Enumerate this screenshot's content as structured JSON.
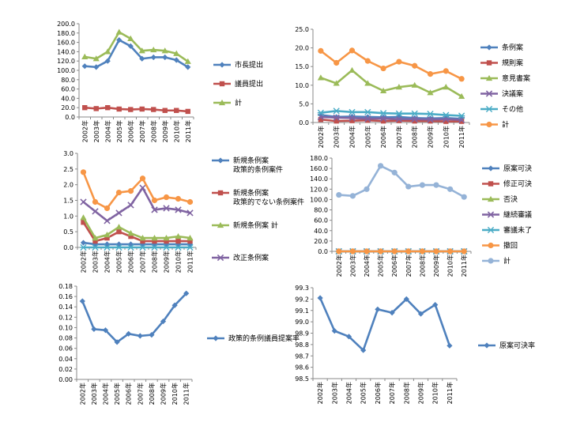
{
  "chart_data": [
    {
      "type": "line",
      "categories": [
        "2002年",
        "2003年",
        "2004年",
        "2005年",
        "2006年",
        "2007年",
        "2008年",
        "2009年",
        "2010年",
        "2011年"
      ],
      "ylim": [
        0,
        200
      ],
      "yticks": [
        "0.0",
        "20.0",
        "40.0",
        "60.0",
        "80.0",
        "100.0",
        "120.0",
        "140.0",
        "160.0",
        "180.0",
        "200.0"
      ],
      "grid": false,
      "legend": "right",
      "series": [
        {
          "name": "市長提出",
          "color": "#4f81bd",
          "marker": "diamond",
          "values": [
            109,
            107,
            120,
            165,
            152,
            125,
            128,
            128,
            122,
            107
          ]
        },
        {
          "name": "議員提出",
          "color": "#c0504d",
          "marker": "square",
          "values": [
            20,
            18,
            20,
            17,
            16,
            17,
            16,
            14,
            14,
            12
          ]
        },
        {
          "name": "計",
          "color": "#9bbb59",
          "marker": "triangle",
          "values": [
            129,
            125,
            140,
            182,
            168,
            142,
            144,
            142,
            136,
            119
          ]
        }
      ]
    },
    {
      "type": "line",
      "categories": [
        "2002年",
        "2003年",
        "2004年",
        "2005年",
        "2006年",
        "2007年",
        "2008年",
        "2009年",
        "2010年",
        "2011年"
      ],
      "ylim": [
        0,
        25
      ],
      "yticks": [
        "0.0",
        "5.0",
        "10.0",
        "15.0",
        "20.0",
        "25.0"
      ],
      "grid": false,
      "legend": "right",
      "series": [
        {
          "name": "条例案",
          "color": "#4f81bd",
          "marker": "diamond",
          "values": [
            2.0,
            1.5,
            1.6,
            1.5,
            1.4,
            1.5,
            1.2,
            1.1,
            1.2,
            1.0
          ]
        },
        {
          "name": "規則案",
          "color": "#c0504d",
          "marker": "square",
          "values": [
            0.8,
            0.4,
            0.5,
            0.6,
            0.4,
            0.5,
            0.4,
            0.4,
            0.3,
            0.3
          ]
        },
        {
          "name": "意見書案",
          "color": "#9bbb59",
          "marker": "triangle",
          "values": [
            12.0,
            10.5,
            14.0,
            10.5,
            8.5,
            9.5,
            10.0,
            8.0,
            9.5,
            7.0
          ]
        },
        {
          "name": "決議案",
          "color": "#8064a2",
          "marker": "x",
          "values": [
            1.5,
            1.3,
            1.2,
            1.0,
            1.1,
            0.9,
            0.9,
            0.8,
            0.9,
            0.7
          ]
        },
        {
          "name": "その他",
          "color": "#4bacc6",
          "marker": "star",
          "values": [
            2.6,
            3.1,
            2.8,
            2.8,
            2.5,
            2.4,
            2.4,
            2.3,
            2.0,
            1.8
          ]
        },
        {
          "name": "計",
          "color": "#f79646",
          "marker": "circle",
          "values": [
            19.2,
            16.0,
            19.3,
            16.5,
            14.5,
            16.3,
            15.2,
            13.0,
            13.8,
            11.7
          ]
        }
      ]
    },
    {
      "type": "line",
      "categories": [
        "2002年",
        "2003年",
        "2004年",
        "2005年",
        "2006年",
        "2007年",
        "2008年",
        "2009年",
        "2010年",
        "2011年"
      ],
      "ylim": [
        0,
        3
      ],
      "yticks": [
        "0.0",
        "0.5",
        "1.0",
        "1.5",
        "2.0",
        "2.5",
        "3.0"
      ],
      "grid": false,
      "legend": "right",
      "series": [
        {
          "name": "新規条例案 政策的条例案件",
          "color": "#4f81bd",
          "marker": "diamond",
          "values": [
            0.15,
            0.1,
            0.1,
            0.1,
            0.1,
            0.1,
            0.1,
            0.1,
            0.1,
            0.1
          ]
        },
        {
          "name": "新規条例案 政策的でない条例案件",
          "color": "#c0504d",
          "marker": "square",
          "values": [
            0.8,
            0.2,
            0.3,
            0.5,
            0.35,
            0.2,
            0.2,
            0.2,
            0.2,
            0.2
          ]
        },
        {
          "name": "新規条例案 計",
          "color": "#9bbb59",
          "marker": "triangle",
          "values": [
            0.95,
            0.3,
            0.4,
            0.65,
            0.45,
            0.3,
            0.3,
            0.3,
            0.35,
            0.3
          ]
        },
        {
          "name": "改正条例案",
          "color": "#8064a2",
          "marker": "x",
          "values": [
            1.45,
            1.15,
            0.85,
            1.1,
            1.35,
            1.9,
            1.2,
            1.25,
            1.2,
            1.1
          ]
        },
        {
          "name": "",
          "color": "#4bacc6",
          "marker": "star",
          "values": [
            0,
            0,
            0,
            0,
            0,
            0,
            0,
            0,
            0,
            0
          ]
        },
        {
          "name": "",
          "color": "#f79646",
          "marker": "circle",
          "values": [
            2.4,
            1.45,
            1.25,
            1.75,
            1.8,
            2.2,
            1.5,
            1.6,
            1.55,
            1.45
          ]
        }
      ]
    },
    {
      "type": "line",
      "categories": [
        "2002年",
        "2003年",
        "2004年",
        "2005年",
        "2006年",
        "2007年",
        "2008年",
        "2009年",
        "2010年",
        "2011年"
      ],
      "ylim": [
        0,
        180
      ],
      "yticks": [
        "0.0",
        "20.0",
        "40.0",
        "60.0",
        "80.0",
        "100.0",
        "120.0",
        "140.0",
        "160.0",
        "180.0"
      ],
      "grid": false,
      "legend": "right",
      "series": [
        {
          "name": "原案可決",
          "color": "#4f81bd",
          "marker": "diamond",
          "values": [
            0,
            0,
            0,
            0,
            0,
            0,
            0,
            0,
            0,
            0
          ]
        },
        {
          "name": "修正可決",
          "color": "#c0504d",
          "marker": "square",
          "values": [
            0,
            0,
            0,
            0,
            0,
            0,
            0,
            0,
            0,
            0
          ]
        },
        {
          "name": "否決",
          "color": "#9bbb59",
          "marker": "triangle",
          "values": [
            0,
            0,
            0,
            0,
            0,
            0,
            0,
            0,
            0,
            0
          ]
        },
        {
          "name": "継続審議",
          "color": "#8064a2",
          "marker": "x",
          "values": [
            0,
            0,
            0,
            0,
            0,
            0,
            0,
            0,
            0,
            0
          ]
        },
        {
          "name": "審議未了",
          "color": "#4bacc6",
          "marker": "star",
          "values": [
            0,
            0,
            0,
            0,
            0,
            0,
            0,
            0,
            0,
            0
          ]
        },
        {
          "name": "撤回",
          "color": "#f79646",
          "marker": "circle",
          "values": [
            0,
            0,
            0,
            0,
            0,
            0,
            0,
            0,
            0,
            0
          ]
        },
        {
          "name": "計",
          "color": "#95b3d7",
          "marker": "circle",
          "values": [
            109,
            107,
            120,
            165,
            152,
            125,
            128,
            128,
            120,
            105
          ]
        }
      ]
    },
    {
      "type": "line",
      "categories": [
        "2002年",
        "2003年",
        "2004年",
        "2005年",
        "2006年",
        "2007年",
        "2008年",
        "2009年",
        "2010年",
        "2011年"
      ],
      "ylim": [
        0,
        0.18
      ],
      "yticks": [
        "0.00",
        "0.02",
        "0.04",
        "0.06",
        "0.08",
        "0.10",
        "0.12",
        "0.14",
        "0.16",
        "0.18"
      ],
      "grid": false,
      "legend": "right",
      "series": [
        {
          "name": "政策的条例議員提案率",
          "color": "#4f81bd",
          "marker": "diamond",
          "values": [
            0.151,
            0.097,
            0.095,
            0.072,
            0.088,
            0.084,
            0.086,
            0.112,
            0.143,
            0.166
          ]
        }
      ]
    },
    {
      "type": "line",
      "categories": [
        "2002年",
        "2003年",
        "2004年",
        "2005年",
        "2006年",
        "2007年",
        "2008年",
        "2009年",
        "2010年",
        "2011年"
      ],
      "ylim": [
        98.5,
        99.3
      ],
      "yticks": [
        "98.5",
        "98.6",
        "98.7",
        "98.8",
        "98.9",
        "99.0",
        "99.1",
        "99.2",
        "99.3"
      ],
      "grid": false,
      "legend": "right",
      "series": [
        {
          "name": "原案可決率",
          "color": "#4f81bd",
          "marker": "diamond",
          "values": [
            99.21,
            98.92,
            98.87,
            98.75,
            99.11,
            99.08,
            99.2,
            99.07,
            99.15,
            98.79
          ]
        }
      ]
    }
  ]
}
